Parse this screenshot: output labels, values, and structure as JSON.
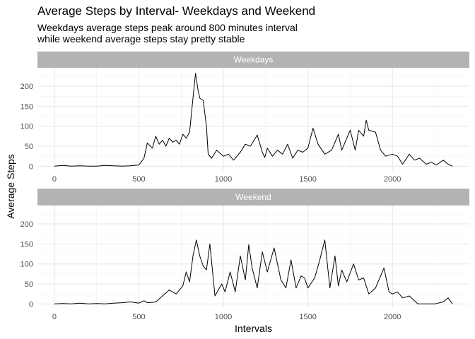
{
  "chart_data": {
    "type": "line",
    "title": "Average Steps by Interval- Weekdays and Weekend",
    "subtitle": [
      "Weekdays average steps peak around 800 minutes interval",
      "while weekend average steps stay pretty stable"
    ],
    "xlabel": "Intervals",
    "ylabel": "Average Steps",
    "xlim": [
      -100,
      2455
    ],
    "ylim": [
      -10,
      246
    ],
    "x_ticks": [
      0,
      500,
      1000,
      1500,
      2000
    ],
    "y_ticks": [
      0,
      50,
      100,
      150,
      200
    ],
    "grid": true,
    "line_color": "#000000",
    "strip_color": "#b3b3b3",
    "grid_color": "#e5e5e5",
    "panels": [
      {
        "name": "Weekdays",
        "x": [
          0,
          50,
          100,
          150,
          200,
          250,
          300,
          350,
          400,
          450,
          500,
          530,
          550,
          580,
          600,
          620,
          640,
          660,
          680,
          700,
          720,
          740,
          760,
          780,
          800,
          820,
          835,
          850,
          860,
          880,
          900,
          910,
          930,
          960,
          1000,
          1030,
          1060,
          1100,
          1130,
          1160,
          1200,
          1230,
          1245,
          1260,
          1290,
          1320,
          1350,
          1380,
          1410,
          1440,
          1470,
          1500,
          1530,
          1560,
          1600,
          1640,
          1680,
          1700,
          1720,
          1750,
          1780,
          1800,
          1830,
          1845,
          1860,
          1900,
          1930,
          1960,
          2000,
          2030,
          2060,
          2100,
          2130,
          2160,
          2200,
          2230,
          2260,
          2300,
          2330,
          2355
        ],
        "y": [
          0,
          2,
          0,
          1,
          0,
          0,
          2,
          1,
          0,
          1,
          3,
          20,
          58,
          45,
          75,
          55,
          65,
          50,
          70,
          60,
          65,
          55,
          80,
          70,
          85,
          170,
          232,
          190,
          170,
          165,
          100,
          30,
          20,
          40,
          25,
          30,
          15,
          35,
          55,
          50,
          78,
          35,
          22,
          45,
          25,
          40,
          30,
          55,
          20,
          40,
          35,
          45,
          95,
          55,
          30,
          40,
          80,
          40,
          60,
          90,
          40,
          90,
          75,
          115,
          90,
          85,
          40,
          25,
          30,
          25,
          5,
          30,
          15,
          20,
          5,
          10,
          3,
          15,
          5,
          0
        ]
      },
      {
        "name": "Weekend",
        "x": [
          0,
          50,
          100,
          150,
          200,
          250,
          300,
          350,
          400,
          450,
          500,
          530,
          550,
          580,
          600,
          640,
          680,
          720,
          760,
          780,
          800,
          820,
          840,
          860,
          880,
          900,
          920,
          950,
          990,
          1010,
          1040,
          1070,
          1100,
          1130,
          1150,
          1170,
          1200,
          1230,
          1260,
          1300,
          1340,
          1370,
          1400,
          1430,
          1460,
          1480,
          1500,
          1540,
          1570,
          1600,
          1630,
          1660,
          1680,
          1700,
          1730,
          1770,
          1800,
          1830,
          1860,
          1900,
          1950,
          1980,
          2000,
          2030,
          2060,
          2100,
          2150,
          2200,
          2250,
          2300,
          2330,
          2355
        ],
        "y": [
          0,
          1,
          0,
          2,
          0,
          1,
          0,
          2,
          3,
          5,
          2,
          8,
          3,
          4,
          5,
          20,
          35,
          25,
          45,
          80,
          55,
          120,
          160,
          120,
          95,
          85,
          150,
          20,
          50,
          30,
          80,
          30,
          120,
          60,
          148,
          90,
          40,
          130,
          80,
          140,
          60,
          40,
          110,
          40,
          70,
          65,
          40,
          65,
          110,
          160,
          40,
          120,
          45,
          85,
          55,
          100,
          60,
          65,
          25,
          40,
          90,
          30,
          25,
          30,
          15,
          20,
          0,
          0,
          0,
          5,
          15,
          0
        ]
      }
    ]
  }
}
